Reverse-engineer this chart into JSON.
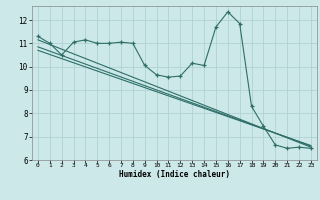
{
  "title": "",
  "xlabel": "Humidex (Indice chaleur)",
  "bg_color": "#cce8e8",
  "line_color": "#2e6e68",
  "grid_color": "#aacece",
  "xlim": [
    -0.5,
    23.5
  ],
  "ylim": [
    6,
    12.6
  ],
  "x_ticks": [
    0,
    1,
    2,
    3,
    4,
    5,
    6,
    7,
    8,
    9,
    10,
    11,
    12,
    13,
    14,
    15,
    16,
    17,
    18,
    19,
    20,
    21,
    22,
    23
  ],
  "y_ticks": [
    6,
    7,
    8,
    9,
    10,
    11,
    12
  ],
  "main_x": [
    0,
    1,
    2,
    3,
    4,
    5,
    6,
    7,
    8,
    9,
    10,
    11,
    12,
    13,
    14,
    15,
    16,
    17,
    18,
    19,
    20,
    21,
    22,
    23
  ],
  "main_y": [
    11.3,
    11.0,
    10.5,
    11.05,
    11.15,
    11.0,
    11.0,
    11.05,
    11.0,
    10.05,
    9.65,
    9.55,
    9.6,
    10.15,
    10.05,
    11.7,
    12.35,
    11.85,
    8.3,
    7.45,
    6.65,
    6.5,
    6.55,
    6.5
  ],
  "line1_x": [
    0,
    23
  ],
  "line1_y": [
    11.15,
    6.55
  ],
  "line2_x": [
    0,
    23
  ],
  "line2_y": [
    10.85,
    6.6
  ],
  "line3_x": [
    0,
    23
  ],
  "line3_y": [
    10.7,
    6.62
  ]
}
